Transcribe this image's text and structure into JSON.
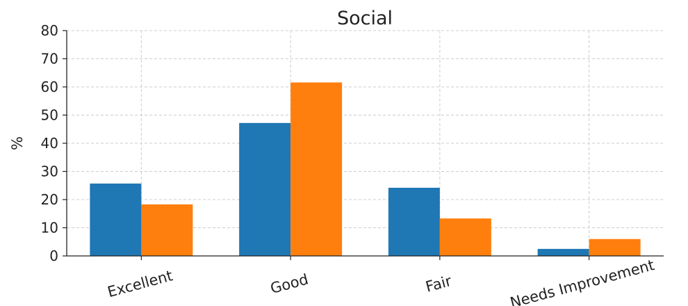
{
  "chart_data": {
    "type": "bar",
    "title": "Social",
    "xlabel": "",
    "ylabel": "%",
    "ylim": [
      0,
      80
    ],
    "yticks": [
      0,
      10,
      20,
      30,
      40,
      50,
      60,
      70,
      80
    ],
    "categories": [
      "Excellent",
      "Good",
      "Fair",
      "Needs Improvement"
    ],
    "series": [
      {
        "values": [
          25.7,
          47.2,
          24.2,
          2.5
        ],
        "color": "#1f77b4"
      },
      {
        "values": [
          18.3,
          61.6,
          13.3,
          6.0
        ],
        "color": "#ff7f0e"
      }
    ],
    "grid": true,
    "legend": "none"
  }
}
